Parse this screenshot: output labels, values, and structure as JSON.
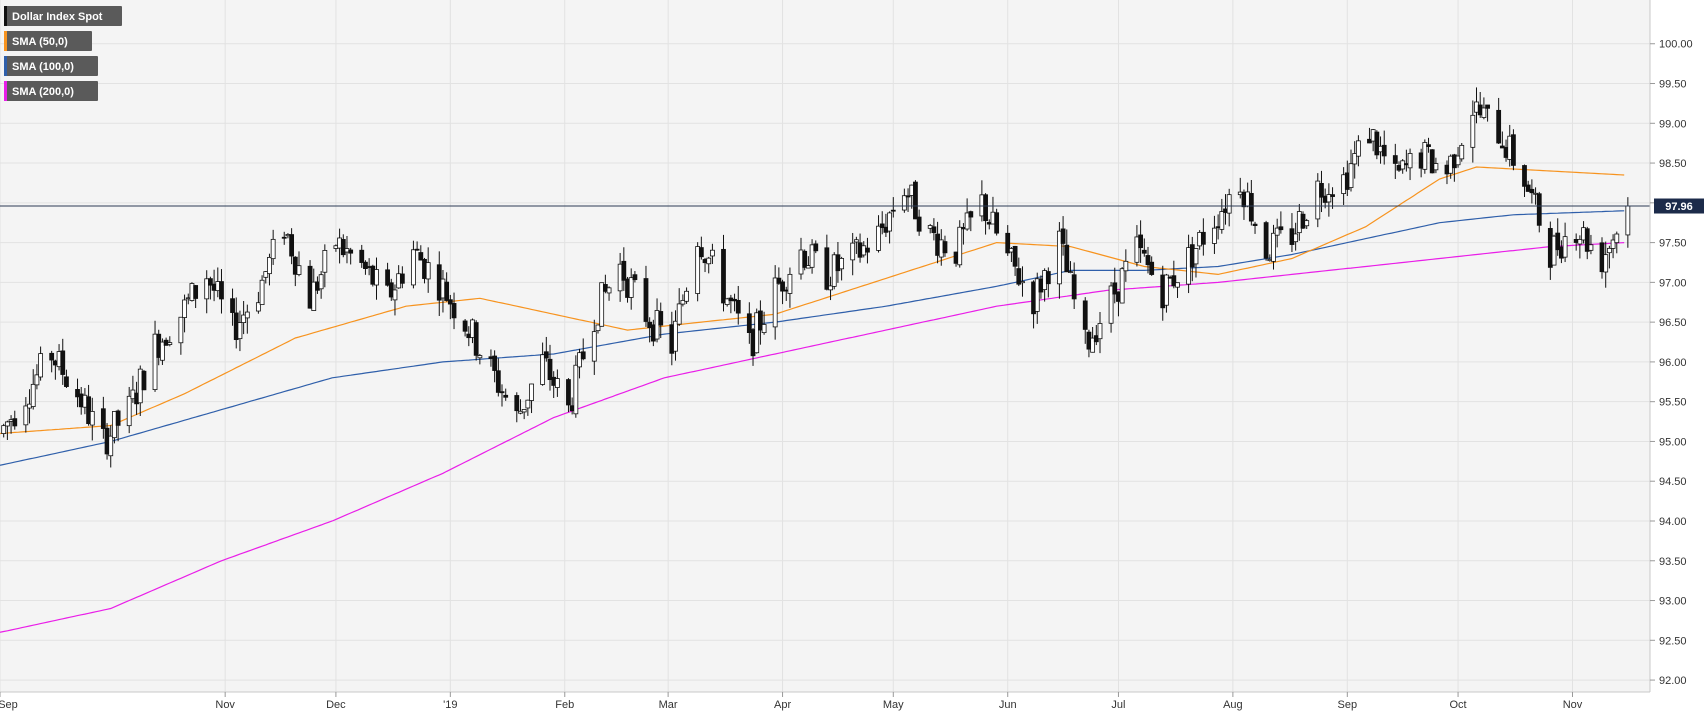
{
  "chart_data": {
    "type": "candlestick",
    "instrument": "Dollar Index Spot",
    "current_price_label": "97.96",
    "current_price": 97.96,
    "ylim": [
      91.85,
      100.55
    ],
    "y_ticks": [
      "92.00",
      "92.50",
      "93.00",
      "93.50",
      "94.00",
      "94.50",
      "95.00",
      "95.50",
      "96.00",
      "96.50",
      "97.00",
      "97.50",
      "98.00",
      "98.50",
      "99.00",
      "99.50",
      "100.00"
    ],
    "x_ticks": [
      {
        "label": "Sep",
        "day": 0
      },
      {
        "label": "Nov",
        "day": 61
      },
      {
        "label": "Dec",
        "day": 91
      },
      {
        "label": "'19",
        "day": 122
      },
      {
        "label": "Feb",
        "day": 153
      },
      {
        "label": "Mar",
        "day": 181
      },
      {
        "label": "Apr",
        "day": 212
      },
      {
        "label": "May",
        "day": 242
      },
      {
        "label": "Jun",
        "day": 273
      },
      {
        "label": "Jul",
        "day": 303
      },
      {
        "label": "Aug",
        "day": 334
      },
      {
        "label": "Sep",
        "day": 365
      },
      {
        "label": "Oct",
        "day": 395
      },
      {
        "label": "Nov",
        "day": 426
      }
    ],
    "x_range_days": [
      0,
      447
    ],
    "legend": [
      {
        "label": "Dollar Index Spot",
        "color": "#111111"
      },
      {
        "label": "SMA (50,0)",
        "color": "#f7931e"
      },
      {
        "label": "SMA (100,0)",
        "color": "#2f5faa"
      },
      {
        "label": "SMA (200,0)",
        "color": "#e91ee8"
      }
    ],
    "close_series": [
      [
        0,
        95.1
      ],
      [
        7,
        95.6
      ],
      [
        14,
        96.1
      ],
      [
        21,
        95.6
      ],
      [
        28,
        95.0
      ],
      [
        35,
        95.4
      ],
      [
        42,
        96.2
      ],
      [
        49,
        96.6
      ],
      [
        56,
        97.1
      ],
      [
        63,
        96.4
      ],
      [
        70,
        96.9
      ],
      [
        77,
        97.7
      ],
      [
        84,
        96.8
      ],
      [
        91,
        97.5
      ],
      [
        98,
        97.2
      ],
      [
        105,
        96.8
      ],
      [
        112,
        97.4
      ],
      [
        119,
        97.0
      ],
      [
        126,
        96.5
      ],
      [
        133,
        95.9
      ],
      [
        140,
        95.3
      ],
      [
        147,
        96.0
      ],
      [
        154,
        95.4
      ],
      [
        161,
        96.6
      ],
      [
        168,
        97.2
      ],
      [
        175,
        96.6
      ],
      [
        182,
        96.2
      ],
      [
        189,
        97.6
      ],
      [
        196,
        96.9
      ],
      [
        203,
        96.2
      ],
      [
        210,
        96.9
      ],
      [
        217,
        97.4
      ],
      [
        224,
        97.1
      ],
      [
        231,
        97.3
      ],
      [
        238,
        97.6
      ],
      [
        245,
        98.2
      ],
      [
        252,
        97.6
      ],
      [
        259,
        97.4
      ],
      [
        266,
        98.0
      ],
      [
        273,
        97.3
      ],
      [
        280,
        96.8
      ],
      [
        287,
        97.5
      ],
      [
        294,
        96.2
      ],
      [
        301,
        96.8
      ],
      [
        308,
        97.4
      ],
      [
        315,
        96.9
      ],
      [
        322,
        97.3
      ],
      [
        329,
        97.8
      ],
      [
        336,
        98.3
      ],
      [
        343,
        97.4
      ],
      [
        350,
        97.6
      ],
      [
        357,
        98.2
      ],
      [
        364,
        98.3
      ],
      [
        371,
        98.9
      ],
      [
        378,
        98.3
      ],
      [
        385,
        98.6
      ],
      [
        392,
        98.4
      ],
      [
        399,
        99.2
      ],
      [
        406,
        98.9
      ],
      [
        413,
        98.3
      ],
      [
        420,
        97.4
      ],
      [
        427,
        97.7
      ],
      [
        434,
        97.3
      ],
      [
        441,
        97.96
      ]
    ],
    "sma50": [
      [
        0,
        95.1
      ],
      [
        30,
        95.2
      ],
      [
        50,
        95.6
      ],
      [
        80,
        96.3
      ],
      [
        110,
        96.7
      ],
      [
        130,
        96.8
      ],
      [
        150,
        96.6
      ],
      [
        170,
        96.4
      ],
      [
        190,
        96.5
      ],
      [
        210,
        96.6
      ],
      [
        230,
        96.9
      ],
      [
        250,
        97.2
      ],
      [
        270,
        97.5
      ],
      [
        290,
        97.45
      ],
      [
        310,
        97.2
      ],
      [
        330,
        97.1
      ],
      [
        350,
        97.3
      ],
      [
        370,
        97.7
      ],
      [
        390,
        98.3
      ],
      [
        400,
        98.45
      ],
      [
        420,
        98.4
      ],
      [
        440,
        98.35
      ]
    ],
    "sma100": [
      [
        0,
        94.7
      ],
      [
        30,
        95.0
      ],
      [
        60,
        95.4
      ],
      [
        90,
        95.8
      ],
      [
        120,
        96.0
      ],
      [
        150,
        96.1
      ],
      [
        180,
        96.35
      ],
      [
        210,
        96.5
      ],
      [
        240,
        96.7
      ],
      [
        270,
        96.95
      ],
      [
        290,
        97.15
      ],
      [
        310,
        97.15
      ],
      [
        330,
        97.2
      ],
      [
        350,
        97.35
      ],
      [
        370,
        97.55
      ],
      [
        390,
        97.75
      ],
      [
        410,
        97.85
      ],
      [
        440,
        97.9
      ]
    ],
    "sma200": [
      [
        0,
        92.6
      ],
      [
        30,
        92.9
      ],
      [
        60,
        93.5
      ],
      [
        90,
        94.0
      ],
      [
        120,
        94.6
      ],
      [
        150,
        95.3
      ],
      [
        180,
        95.8
      ],
      [
        210,
        96.1
      ],
      [
        240,
        96.4
      ],
      [
        270,
        96.7
      ],
      [
        300,
        96.9
      ],
      [
        330,
        97.0
      ],
      [
        360,
        97.15
      ],
      [
        390,
        97.3
      ],
      [
        420,
        97.45
      ],
      [
        440,
        97.5
      ]
    ]
  }
}
